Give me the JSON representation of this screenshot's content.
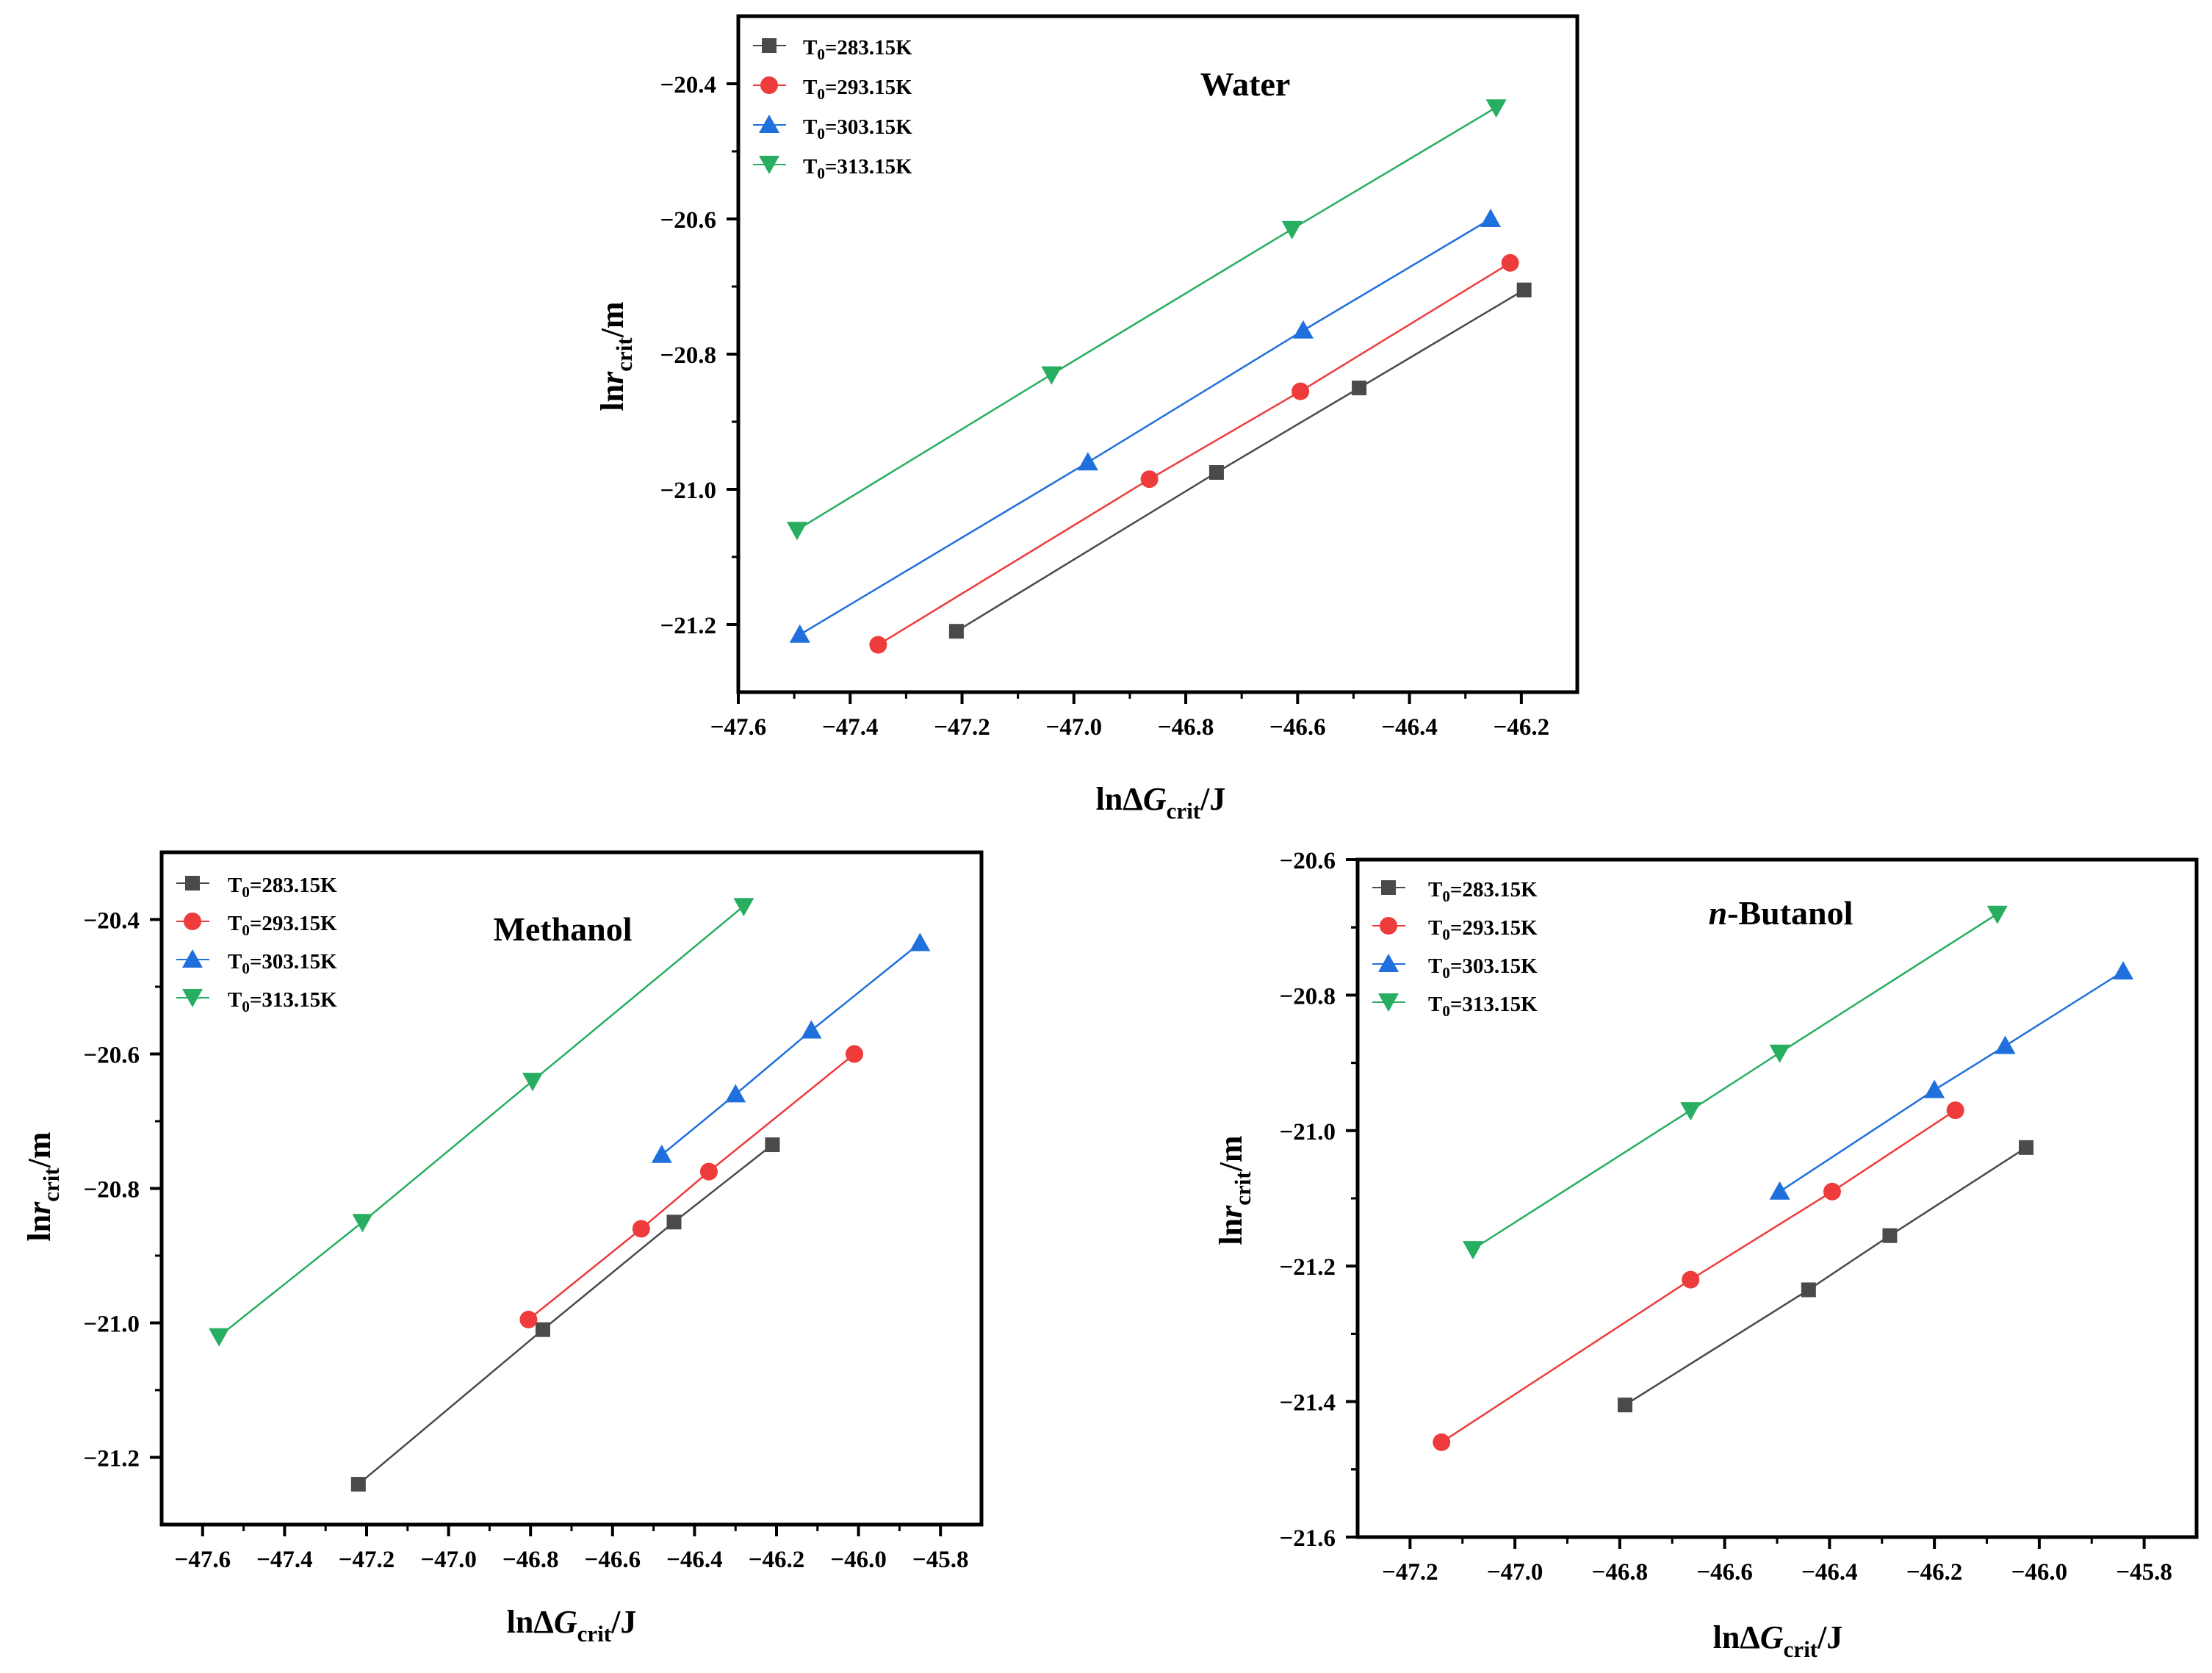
{
  "colors": {
    "s283": "#4a4a4a",
    "s293": "#ee3b3b",
    "s303": "#1f6fdc",
    "s313": "#27ae60",
    "axis": "#000000"
  },
  "legend_labels": {
    "s283": {
      "prefix": "T",
      "sub": "0",
      "suffix": "=283.15K"
    },
    "s293": {
      "prefix": "T",
      "sub": "0",
      "suffix": "=293.15K"
    },
    "s303": {
      "prefix": "T",
      "sub": "0",
      "suffix": "=303.15K"
    },
    "s313": {
      "prefix": "T",
      "sub": "0",
      "suffix": "=313.15K"
    }
  },
  "axis_titles": {
    "x": {
      "a": "lnΔ",
      "b": "G",
      "sub": "crit",
      "c": "/J"
    },
    "y": {
      "a": "ln",
      "b": "r",
      "sub": "crit",
      "c": "/m"
    }
  },
  "chart_data": [
    {
      "type": "line",
      "title": "Water",
      "xlabel": "lnΔGcrit/J",
      "ylabel": "lnrcrit/m",
      "xlim": [
        -47.6,
        -46.1
      ],
      "ylim": [
        -21.3,
        -20.3
      ],
      "xticks": [
        "−47.6",
        "−47.4",
        "−47.2",
        "−47.0",
        "−46.8",
        "−46.6",
        "−46.4",
        "−46.2"
      ],
      "yticks": [
        "−20.4",
        "−20.6",
        "−20.8",
        "−21.0",
        "−21.2"
      ],
      "series": [
        {
          "name": "T0=283.15K",
          "marker": "square",
          "x": [
            -47.21,
            -46.745,
            -46.49,
            -46.195
          ],
          "y": [
            -21.21,
            -20.975,
            -20.85,
            -20.705
          ]
        },
        {
          "name": "T0=293.15K",
          "marker": "circle",
          "x": [
            -47.35,
            -46.865,
            -46.595,
            -46.22
          ],
          "y": [
            -21.23,
            -20.985,
            -20.855,
            -20.665
          ]
        },
        {
          "name": "T0=303.15K",
          "marker": "triangle-up",
          "x": [
            -47.49,
            -46.975,
            -46.59,
            -46.255
          ],
          "y": [
            -21.215,
            -20.96,
            -20.765,
            -20.6
          ]
        },
        {
          "name": "T0=313.15K",
          "marker": "triangle-down",
          "x": [
            -47.495,
            -47.04,
            -46.61,
            -46.245
          ],
          "y": [
            -21.06,
            -20.83,
            -20.615,
            -20.435
          ]
        }
      ]
    },
    {
      "type": "line",
      "title": "Methanol",
      "xlabel": "lnΔGcrit/J",
      "ylabel": "lnrcrit/m",
      "xlim": [
        -47.7,
        -45.7
      ],
      "ylim": [
        -21.3,
        -20.3
      ],
      "xticks": [
        "−47.6",
        "−47.4",
        "−47.2",
        "−47.0",
        "−46.8",
        "−46.6",
        "−46.4",
        "−46.2",
        "−46.0",
        "−45.8"
      ],
      "yticks": [
        "−20.4",
        "−20.6",
        "−20.8",
        "−21.0",
        "−21.2"
      ],
      "series": [
        {
          "name": "T0=283.15K",
          "marker": "square",
          "x": [
            -47.22,
            -46.77,
            -46.45,
            -46.21
          ],
          "y": [
            -21.24,
            -21.01,
            -20.85,
            -20.735
          ]
        },
        {
          "name": "T0=293.15K",
          "marker": "circle",
          "x": [
            -46.805,
            -46.53,
            -46.365,
            -46.01
          ],
          "y": [
            -20.995,
            -20.86,
            -20.775,
            -20.6
          ]
        },
        {
          "name": "T0=303.15K",
          "marker": "triangle-up",
          "x": [
            -46.48,
            -46.3,
            -46.115,
            -45.85
          ],
          "y": [
            -20.75,
            -20.66,
            -20.565,
            -20.435
          ]
        },
        {
          "name": "T0=313.15K",
          "marker": "triangle-down",
          "x": [
            -47.56,
            -47.21,
            -46.795,
            -46.28
          ],
          "y": [
            -21.02,
            -20.85,
            -20.64,
            -20.38
          ]
        }
      ]
    },
    {
      "type": "line",
      "title": "n-Butanol",
      "title_italic": "n",
      "title_rest": "-Butanol",
      "xlabel": "lnΔGcrit/J",
      "ylabel": "lnrcrit/m",
      "xlim": [
        -47.3,
        -45.7
      ],
      "ylim": [
        -21.6,
        -20.6
      ],
      "xticks": [
        "−47.2",
        "−47.0",
        "−46.8",
        "−46.6",
        "−46.4",
        "−46.2",
        "−46.0",
        "−45.8"
      ],
      "yticks": [
        "−20.6",
        "−20.8",
        "−21.0",
        "−21.2",
        "−21.4",
        "−21.6"
      ],
      "series": [
        {
          "name": "T0=283.15K",
          "marker": "square",
          "x": [
            -46.79,
            -46.44,
            -46.285,
            -46.025
          ],
          "y": [
            -21.405,
            -21.235,
            -21.155,
            -21.025
          ]
        },
        {
          "name": "T0=293.15K",
          "marker": "circle",
          "x": [
            -47.14,
            -46.665,
            -46.395,
            -46.16
          ],
          "y": [
            -21.46,
            -21.22,
            -21.09,
            -20.97
          ]
        },
        {
          "name": "T0=303.15K",
          "marker": "triangle-up",
          "x": [
            -46.495,
            -46.2,
            -46.065,
            -45.84
          ],
          "y": [
            -21.09,
            -20.94,
            -20.875,
            -20.765
          ]
        },
        {
          "name": "T0=313.15K",
          "marker": "triangle-down",
          "x": [
            -47.08,
            -46.665,
            -46.495,
            -46.08
          ],
          "y": [
            -21.175,
            -20.97,
            -20.885,
            -20.68
          ]
        }
      ]
    }
  ]
}
